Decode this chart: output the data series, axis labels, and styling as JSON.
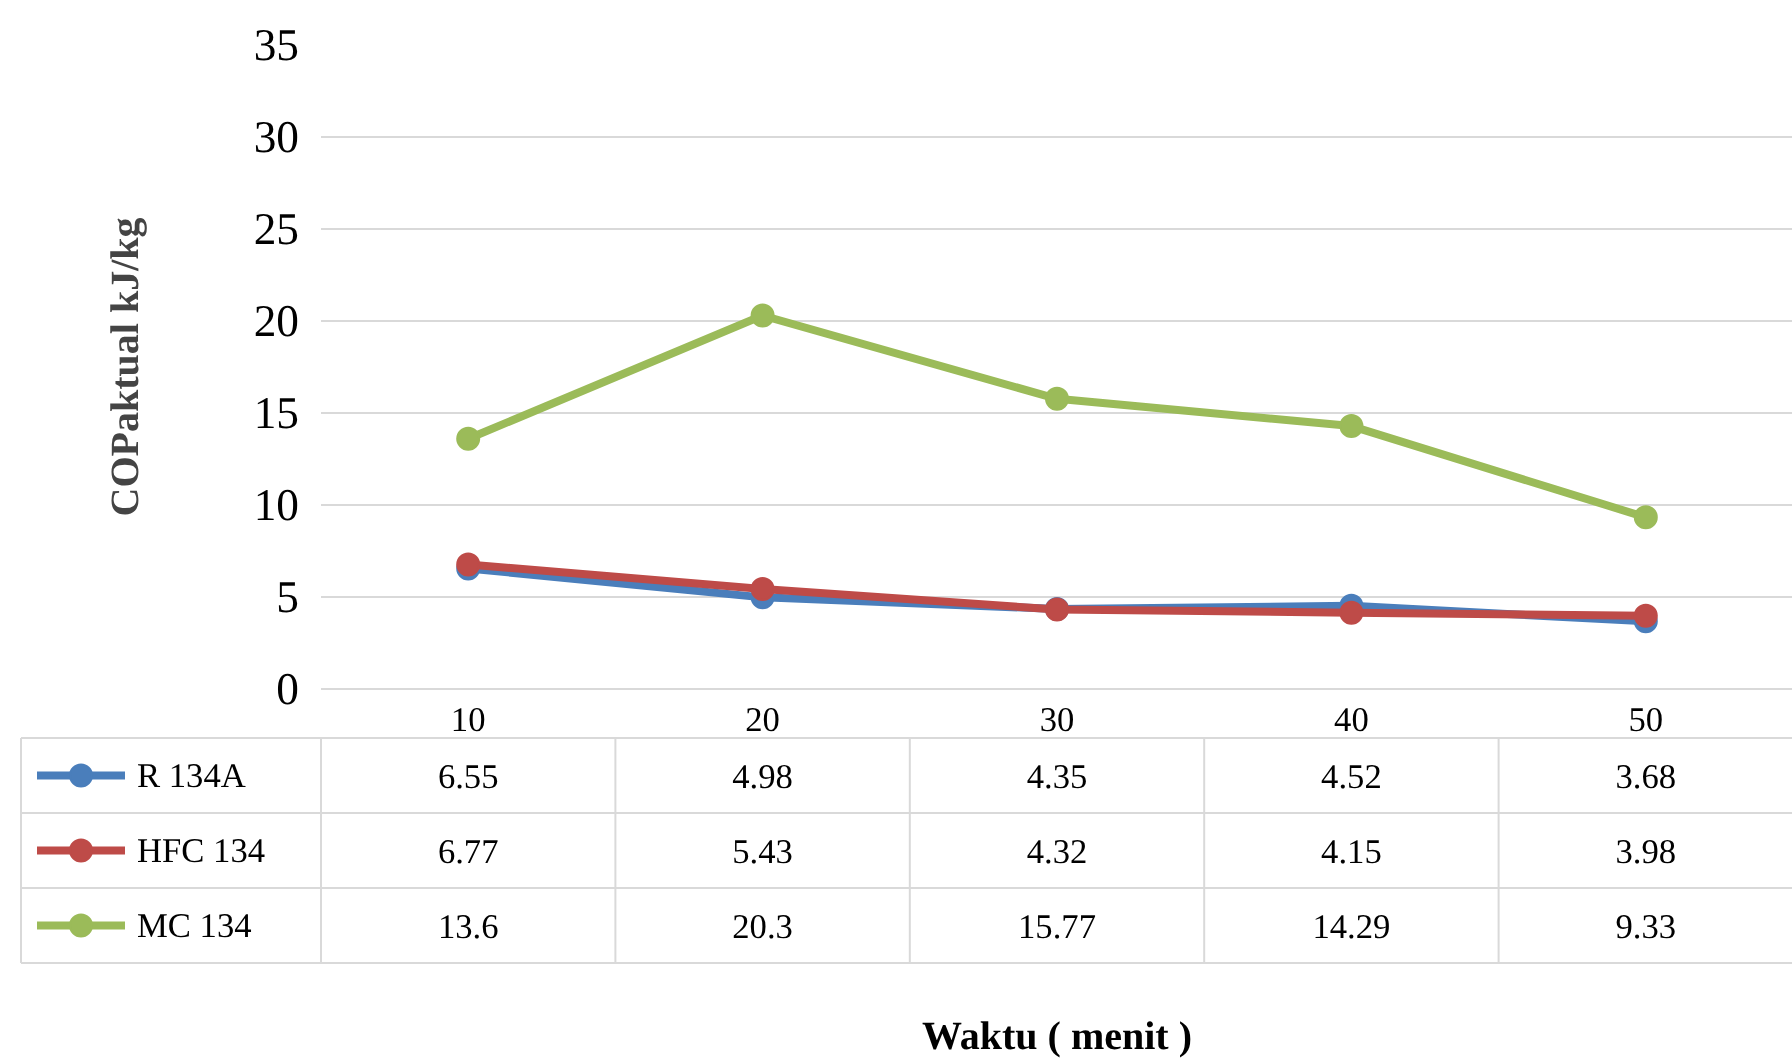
{
  "chart_data": {
    "type": "line",
    "ylabel": "COPaktual kJ/kg",
    "annotations": [
      "Waktu ( menit )"
    ],
    "categories": [
      "10",
      "20",
      "30",
      "40",
      "50"
    ],
    "series": [
      {
        "name": "R 134A",
        "color": "#4a7ebb",
        "values": [
          6.55,
          4.98,
          4.35,
          4.52,
          3.68
        ]
      },
      {
        "name": "HFC 134",
        "color": "#be4b48",
        "values": [
          6.77,
          5.43,
          4.32,
          4.15,
          3.98
        ]
      },
      {
        "name": "MC 134",
        "color": "#9bbb59",
        "values": [
          13.6,
          20.3,
          15.77,
          14.29,
          9.33
        ]
      }
    ],
    "ylim": [
      0,
      35
    ],
    "yticks": [
      0,
      5,
      10,
      15,
      20,
      25,
      30,
      35
    ],
    "grid": "y",
    "marker": "circle",
    "line_style": "solid",
    "legend": "bottom",
    "data_labels": true
  }
}
